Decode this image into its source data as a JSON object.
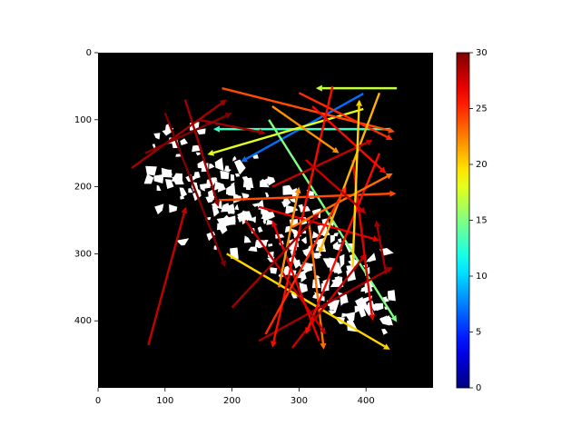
{
  "chart_data": {
    "type": "quiver",
    "xlim": [
      0,
      500
    ],
    "ylim": [
      500,
      0
    ],
    "xticks": [
      0,
      100,
      200,
      300,
      400
    ],
    "yticks": [
      0,
      100,
      200,
      300,
      400
    ],
    "clim": [
      0,
      30
    ],
    "cticks": [
      0,
      5,
      10,
      15,
      20,
      25,
      30
    ],
    "colormap": "jet",
    "x": [
      396,
      446,
      436,
      396,
      255,
      192,
      314,
      75,
      50,
      185,
      180,
      290,
      240,
      100,
      130,
      240,
      420,
      300,
      380,
      220,
      330,
      350,
      430,
      270,
      420,
      290,
      70,
      320,
      260,
      200,
      380,
      250,
      310,
      150,
      260
    ],
    "y": [
      61,
      53,
      114,
      84,
      100,
      300,
      246,
      436,
      172,
      53,
      220,
      440,
      430,
      90,
      70,
      230,
      150,
      60,
      160,
      250,
      430,
      50,
      330,
      350,
      60,
      260,
      150,
      80,
      200,
      380,
      320,
      420,
      160,
      100,
      80
    ],
    "u": [
      -183,
      -121,
      -264,
      -233,
      191,
      244,
      23,
      56,
      142,
      258,
      265,
      110,
      200,
      90,
      50,
      180,
      -110,
      140,
      30,
      120,
      -70,
      -90,
      -15,
      30,
      -90,
      150,
      130,
      110,
      150,
      130,
      10,
      120,
      90,
      100,
      100
    ],
    "v": [
      102,
      0,
      0,
      68,
      302,
      143,
      197,
      -206,
      -102,
      65,
      -10,
      -140,
      -110,
      230,
      160,
      50,
      270,
      70,
      240,
      170,
      -180,
      390,
      -80,
      -150,
      240,
      -80,
      -60,
      100,
      -70,
      -140,
      -250,
      -220,
      80,
      20,
      70
    ],
    "c": [
      7,
      17,
      13,
      18,
      15,
      20,
      23,
      28,
      29,
      24,
      24,
      28,
      29,
      30,
      29,
      27,
      26,
      25,
      27,
      28,
      27,
      26,
      29,
      22,
      21,
      23,
      30,
      26,
      28,
      29,
      20,
      25,
      28,
      29,
      22
    ]
  }
}
